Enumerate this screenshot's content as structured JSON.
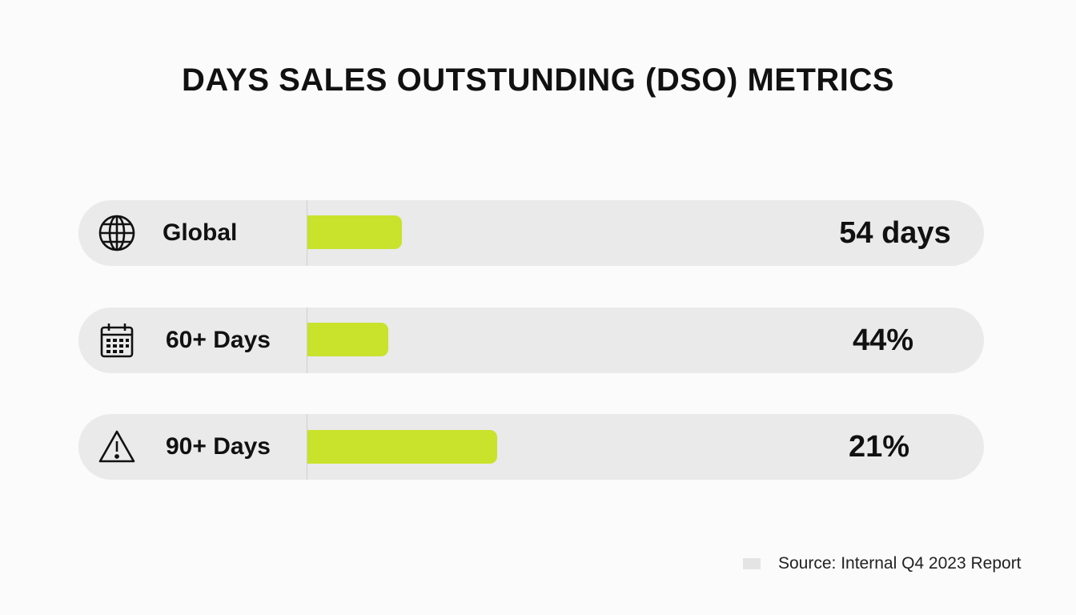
{
  "chart_data": {
    "type": "bar",
    "title": "DAYS SALES OUTSTUNDING (DSO) METRICS",
    "categories": [
      "Global",
      "60+ Days",
      "90+ Days"
    ],
    "values": [
      54,
      44,
      21
    ],
    "value_labels": [
      "54 days",
      "44%",
      "21%"
    ],
    "bar_fill_fraction": [
      0.14,
      0.12,
      0.28
    ],
    "icons": [
      "globe-icon",
      "calendar-icon",
      "warning-icon"
    ],
    "colors": {
      "bar": "#c9e22b",
      "track": "#eaeaea",
      "background": "#fbfbfb"
    },
    "source": "Source: Internal Q4 2023 Report"
  }
}
